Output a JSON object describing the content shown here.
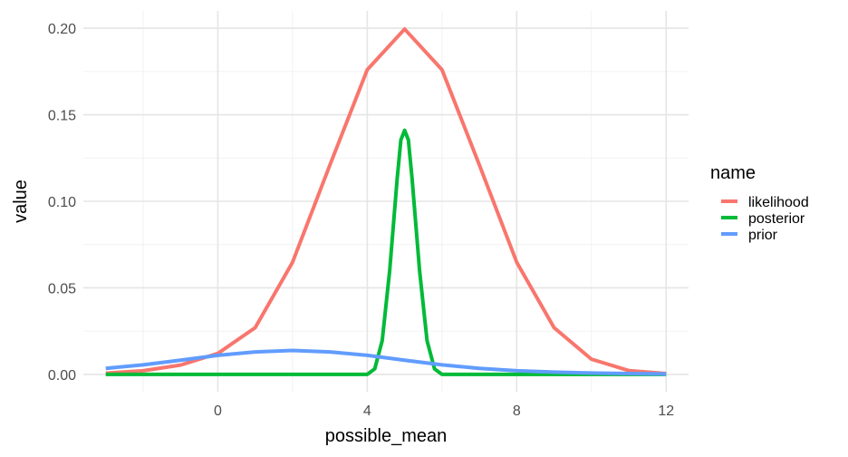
{
  "chart_data": {
    "type": "line",
    "title": "",
    "xlabel": "possible_mean",
    "ylabel": "value",
    "xlim": [
      -3.6,
      12.6
    ],
    "ylim": [
      -0.01,
      0.21
    ],
    "x_ticks": [
      0,
      4,
      8,
      12
    ],
    "x_tick_labels": [
      "0",
      "4",
      "8",
      "12"
    ],
    "x_minor_ticks": [
      -2,
      2,
      6,
      10
    ],
    "y_ticks": [
      0,
      0.05,
      0.1,
      0.15,
      0.2
    ],
    "y_tick_labels": [
      "0.00",
      "0.05",
      "0.10",
      "0.15",
      "0.20"
    ],
    "y_minor_ticks": [
      0.025,
      0.075,
      0.125,
      0.175
    ],
    "grid": true,
    "legend": {
      "title": "name",
      "position": "right"
    },
    "series": [
      {
        "name": "likelihood",
        "color": "#F8766D",
        "x": [
          -3,
          -2,
          -1,
          0,
          1,
          2,
          3,
          4,
          5,
          6,
          7,
          8,
          9,
          10,
          11,
          12
        ],
        "y": [
          0.0007,
          0.0021,
          0.0054,
          0.0121,
          0.027,
          0.0648,
          0.121,
          0.176,
          0.1995,
          0.176,
          0.121,
          0.0648,
          0.027,
          0.0088,
          0.0022,
          0.0005
        ]
      },
      {
        "name": "posterior",
        "color": "#00BA38",
        "x": [
          -3,
          4,
          4.2,
          4.4,
          4.6,
          4.8,
          4.9,
          5.0,
          5.1,
          5.2,
          5.4,
          5.6,
          5.8,
          6.0,
          12
        ],
        "y": [
          0.0,
          0.0,
          0.0032,
          0.0195,
          0.06,
          0.113,
          0.1355,
          0.141,
          0.1355,
          0.113,
          0.06,
          0.0195,
          0.0032,
          0.0,
          0.0
        ]
      },
      {
        "name": "prior",
        "color": "#619CFF",
        "x": [
          -3,
          -2,
          -1,
          0,
          1,
          2,
          3,
          4,
          5,
          6,
          7,
          8,
          9,
          10,
          11,
          12
        ],
        "y": [
          0.0035,
          0.0055,
          0.0082,
          0.011,
          0.013,
          0.0138,
          0.013,
          0.011,
          0.0082,
          0.0055,
          0.0035,
          0.0021,
          0.0013,
          0.0008,
          0.0005,
          0.0003
        ]
      }
    ]
  }
}
